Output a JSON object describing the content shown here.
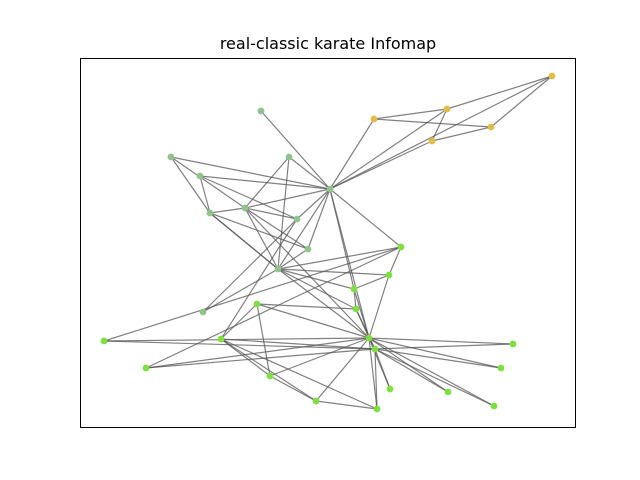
{
  "title": "real-classic karate Infomap",
  "colors": {
    "community_yellow": "#e2bd46",
    "community_sage": "#90c48c",
    "community_green": "#7ee040",
    "edge": "#555555"
  },
  "graph": {
    "nodes": [
      {
        "id": "n1",
        "community": "community_green"
      },
      {
        "id": "n2",
        "community": "community_green"
      },
      {
        "id": "n3",
        "community": "community_green"
      },
      {
        "id": "n4",
        "community": "community_green"
      },
      {
        "id": "n5",
        "community": "community_green"
      },
      {
        "id": "n6",
        "community": "community_green"
      },
      {
        "id": "n7",
        "community": "community_green"
      },
      {
        "id": "n8",
        "community": "community_green"
      },
      {
        "id": "n9",
        "community": "community_green"
      },
      {
        "id": "n10",
        "community": "community_green"
      },
      {
        "id": "n11",
        "community": "community_green"
      },
      {
        "id": "n12",
        "community": "community_green"
      },
      {
        "id": "n13",
        "community": "community_green"
      },
      {
        "id": "n14",
        "community": "community_green"
      },
      {
        "id": "n15",
        "community": "community_green"
      },
      {
        "id": "n16",
        "community": "community_green"
      },
      {
        "id": "n17",
        "community": "community_green"
      },
      {
        "id": "n18",
        "community": "community_green"
      },
      {
        "id": "s1",
        "community": "community_sage"
      },
      {
        "id": "s2",
        "community": "community_sage"
      },
      {
        "id": "s3",
        "community": "community_sage"
      },
      {
        "id": "s4",
        "community": "community_sage"
      },
      {
        "id": "s5",
        "community": "community_sage"
      },
      {
        "id": "s6",
        "community": "community_sage"
      },
      {
        "id": "s7",
        "community": "community_sage"
      },
      {
        "id": "s8",
        "community": "community_sage"
      },
      {
        "id": "s9",
        "community": "community_sage"
      },
      {
        "id": "s10",
        "community": "community_sage"
      },
      {
        "id": "s11",
        "community": "community_sage"
      },
      {
        "id": "y1",
        "community": "community_yellow"
      },
      {
        "id": "y2",
        "community": "community_yellow"
      },
      {
        "id": "y3",
        "community": "community_yellow"
      },
      {
        "id": "y4",
        "community": "community_yellow"
      },
      {
        "id": "y5",
        "community": "community_yellow"
      }
    ],
    "edges": [
      [
        "y1",
        "y2"
      ],
      [
        "y1",
        "y4"
      ],
      [
        "y1",
        "s5"
      ],
      [
        "y2",
        "y3"
      ],
      [
        "y2",
        "y5"
      ],
      [
        "y3",
        "y4"
      ],
      [
        "y3",
        "s5"
      ],
      [
        "y2",
        "s5"
      ],
      [
        "y4",
        "y5"
      ],
      [
        "y5",
        "s5"
      ],
      [
        "s1",
        "s5"
      ],
      [
        "s2",
        "s6"
      ],
      [
        "s2",
        "s5"
      ],
      [
        "s3",
        "s5"
      ],
      [
        "s4",
        "s5"
      ],
      [
        "s5",
        "s7"
      ],
      [
        "s5",
        "s9"
      ],
      [
        "s5",
        "s10"
      ],
      [
        "s5",
        "s11"
      ],
      [
        "s5",
        "n12"
      ],
      [
        "s5",
        "n1"
      ],
      [
        "s5",
        "n3"
      ],
      [
        "s2",
        "s7"
      ],
      [
        "s3",
        "s9"
      ],
      [
        "s3",
        "s7"
      ],
      [
        "s4",
        "s6"
      ],
      [
        "s6",
        "s7"
      ],
      [
        "s6",
        "s9"
      ],
      [
        "s7",
        "s9"
      ],
      [
        "s7",
        "s10"
      ],
      [
        "s7",
        "s11"
      ],
      [
        "s7",
        "n3"
      ],
      [
        "s8",
        "s9"
      ],
      [
        "s8",
        "s11"
      ],
      [
        "s9",
        "s10"
      ],
      [
        "s9",
        "n12"
      ],
      [
        "s9",
        "n1"
      ],
      [
        "s9",
        "n2"
      ],
      [
        "s9",
        "n3"
      ],
      [
        "s9",
        "n7"
      ],
      [
        "s6",
        "s10"
      ],
      [
        "s4",
        "s11"
      ],
      [
        "s11",
        "n9"
      ],
      [
        "s6",
        "s9"
      ],
      [
        "n1",
        "n2"
      ],
      [
        "n1",
        "n7"
      ],
      [
        "n1",
        "n3"
      ],
      [
        "n2",
        "n3"
      ],
      [
        "n2",
        "n12"
      ],
      [
        "n3",
        "n4"
      ],
      [
        "n3",
        "n5"
      ],
      [
        "n3",
        "n6"
      ],
      [
        "n3",
        "n13"
      ],
      [
        "n3",
        "n16"
      ],
      [
        "n3",
        "n18"
      ],
      [
        "n3",
        "n11"
      ],
      [
        "n3",
        "n10"
      ],
      [
        "n3",
        "n17"
      ],
      [
        "n3",
        "n14"
      ],
      [
        "n3",
        "n15"
      ],
      [
        "n4",
        "n7"
      ],
      [
        "n4",
        "n9"
      ],
      [
        "n4",
        "n5"
      ],
      [
        "n4",
        "n6"
      ],
      [
        "n4",
        "n15"
      ],
      [
        "n4",
        "n14"
      ],
      [
        "n4",
        "n17"
      ],
      [
        "n4",
        "n13"
      ],
      [
        "n4",
        "n18"
      ],
      [
        "n4",
        "n16"
      ],
      [
        "n7",
        "n8"
      ],
      [
        "n7",
        "n3"
      ],
      [
        "n8",
        "n9"
      ],
      [
        "n8",
        "n10"
      ],
      [
        "n9",
        "n11"
      ],
      [
        "n9",
        "n10"
      ],
      [
        "n9",
        "n14"
      ],
      [
        "n10",
        "n11"
      ],
      [
        "n11",
        "n14"
      ],
      [
        "n8",
        "n3"
      ],
      [
        "n5",
        "n12"
      ],
      [
        "n6",
        "n12"
      ]
    ]
  }
}
